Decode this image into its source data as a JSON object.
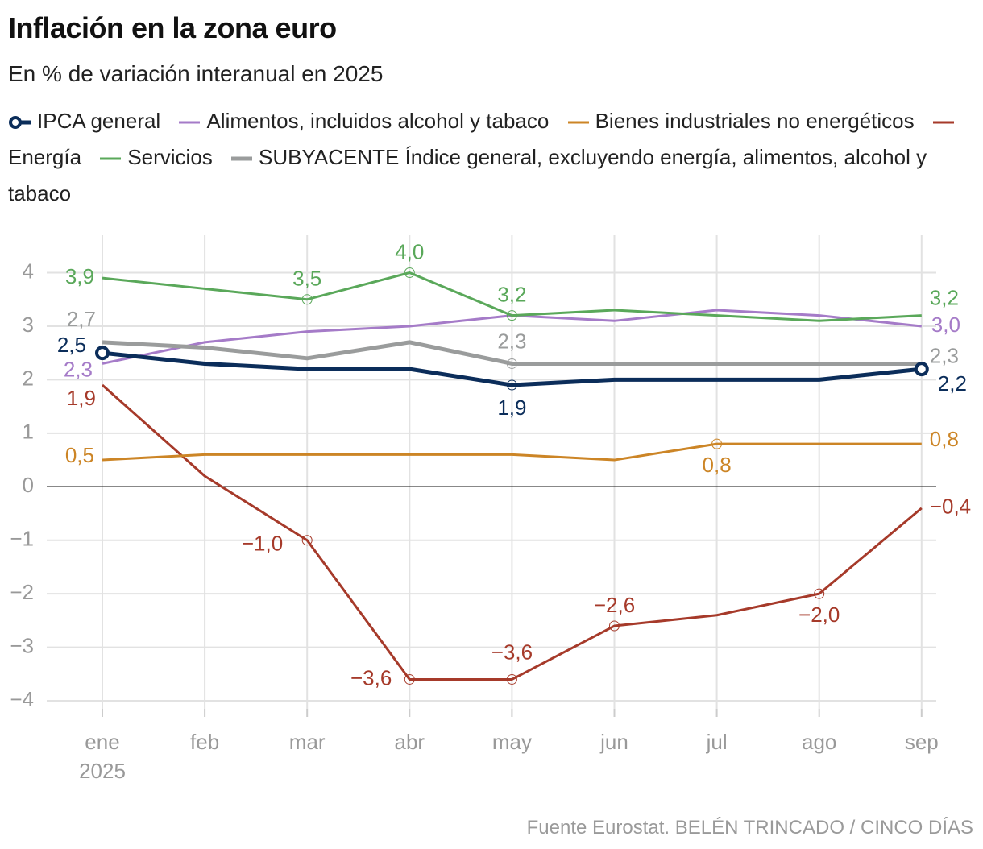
{
  "chart_data": {
    "type": "line",
    "title": "Inflación en la zona euro",
    "subtitle": "En % de variación interanual en 2025",
    "source": "Fuente Eurostat. BELÉN TRINCADO / CINCO DÍAS",
    "categories": [
      "ene",
      "feb",
      "mar",
      "abr",
      "may",
      "jun",
      "jul",
      "ago",
      "sep"
    ],
    "year_label": "2025",
    "ylim": [
      -4.15,
      4.7
    ],
    "yticks": [
      {
        "value": -4,
        "label": "−4"
      },
      {
        "value": -3,
        "label": "−3"
      },
      {
        "value": -2,
        "label": "−2"
      },
      {
        "value": -1,
        "label": "−1"
      },
      0,
      1,
      2,
      3,
      4
    ],
    "grid": true,
    "series": [
      {
        "name": "IPCA general",
        "color": "#0b2d5a",
        "values": [
          2.5,
          2.3,
          2.2,
          2.2,
          1.9,
          2.0,
          2.0,
          2.0,
          2.2
        ],
        "value_labels": [
          "2,5",
          null,
          null,
          null,
          "1,9",
          null,
          null,
          null,
          "2,2"
        ]
      },
      {
        "name": "Alimentos, incluidos alcohol y tabaco",
        "color": "#a57bc8",
        "values": [
          2.3,
          2.7,
          2.9,
          3.0,
          3.2,
          3.1,
          3.3,
          3.2,
          3.0
        ],
        "value_labels": [
          "2,3",
          null,
          null,
          null,
          null,
          null,
          null,
          null,
          "3,0"
        ]
      },
      {
        "name": "Bienes industriales no energéticos",
        "color": "#cc8526",
        "values": [
          0.5,
          0.6,
          0.6,
          0.6,
          0.6,
          0.5,
          0.8,
          0.8,
          0.8
        ],
        "value_labels": [
          "0,5",
          null,
          null,
          null,
          null,
          null,
          "0,8",
          null,
          "0,8"
        ]
      },
      {
        "name": "Energía",
        "color": "#a63a2a",
        "values": [
          1.9,
          0.2,
          -1.0,
          -3.6,
          -3.6,
          -2.6,
          -2.4,
          -2.0,
          -0.4
        ],
        "value_labels": [
          "1,9",
          null,
          "−1,0",
          "−3,6",
          "−3,6",
          "−2,6",
          null,
          "−2,0",
          "−0,4"
        ]
      },
      {
        "name": "Servicios",
        "color": "#5aa85a",
        "values": [
          3.9,
          3.7,
          3.5,
          4.0,
          3.2,
          3.3,
          3.2,
          3.1,
          3.2
        ],
        "value_labels": [
          "3,9",
          null,
          "3,5",
          "4,0",
          "3,2",
          null,
          null,
          null,
          "3,2"
        ]
      },
      {
        "name": "SUBYACENTE Índice general, excluyendo energía, alimentos, alcohol y tabaco",
        "color": "#9a9c9c",
        "values": [
          2.7,
          2.6,
          2.4,
          2.7,
          2.3,
          2.3,
          2.3,
          2.3,
          2.3
        ],
        "value_labels": [
          "2,7",
          null,
          null,
          null,
          "2,3",
          null,
          null,
          null,
          "2,3"
        ]
      }
    ]
  }
}
